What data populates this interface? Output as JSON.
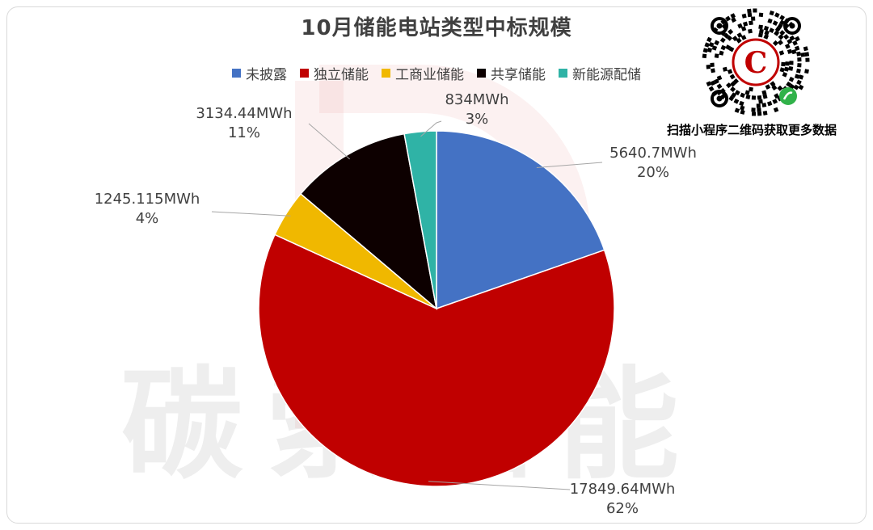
{
  "chart_data": {
    "type": "pie",
    "title": "10月储能电站类型中标规模",
    "categories": [
      "未披露",
      "独立储能",
      "工商业储能",
      "共享储能",
      "新能源配储"
    ],
    "values": [
      5640.7,
      17849.64,
      1245.115,
      3134.44,
      834
    ],
    "value_labels": [
      "5640.7MWh",
      "17849.64MWh",
      "1245.115MWh",
      "3134.44MWh",
      "834MWh"
    ],
    "percent_labels": [
      "20%",
      "62%",
      "4%",
      "11%",
      "3%"
    ],
    "colors": [
      "#4472c4",
      "#c00000",
      "#f0b800",
      "#0d0000",
      "#2fb3a6"
    ],
    "legend_position": "top",
    "start_angle": "12 o'clock",
    "direction": "clockwise"
  },
  "qr": {
    "caption": "扫描小程序二维码获取更多数据",
    "logo_letter": "C"
  },
  "watermark": {
    "text": "碳索储能"
  }
}
